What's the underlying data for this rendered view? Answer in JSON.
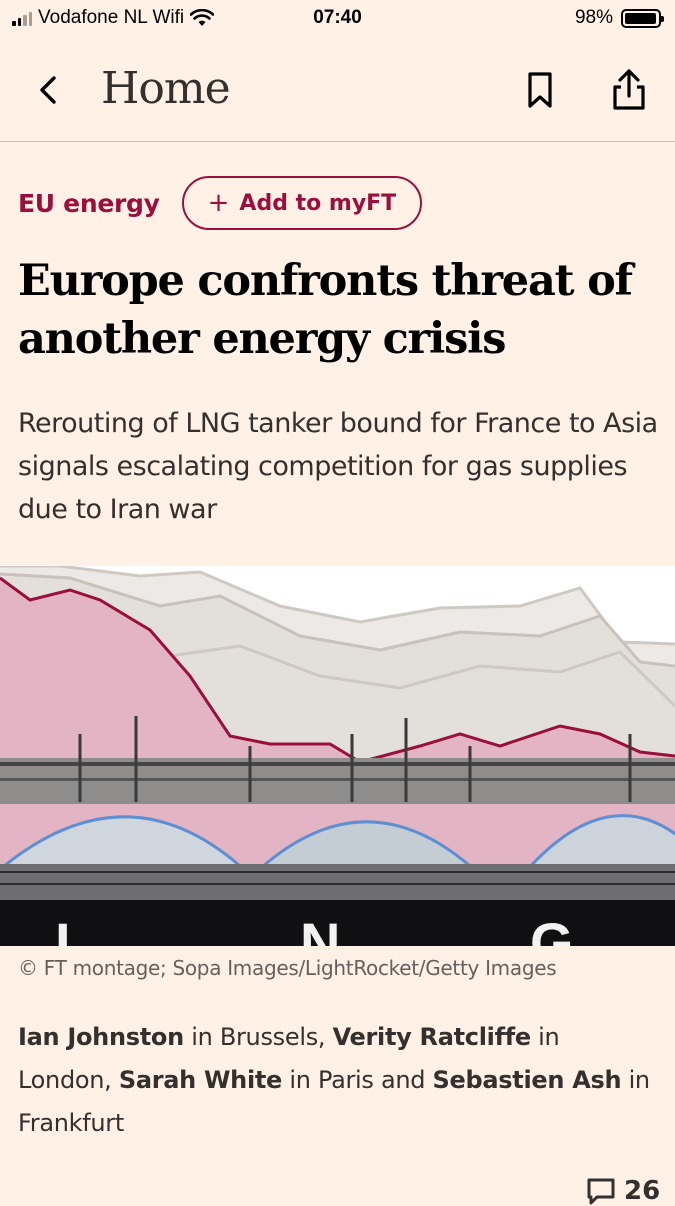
{
  "status_bar": {
    "carrier": "Vodafone NL Wifi",
    "time": "07:40",
    "battery": "98%",
    "battery_level": 0.98
  },
  "nav": {
    "title": "Home"
  },
  "topic": {
    "label": "EU energy",
    "myft_label": "Add to myFT",
    "myft_plus": "+"
  },
  "article": {
    "headline": "Europe confronts threat of another energy crisis",
    "standfirst": "Rerouting of LNG tanker bound for France to Asia signals escalating competition for gas supplies due to Iran war",
    "image_caption": "© FT montage; Sopa Images/LightRocket/Getty Images",
    "image_lettering": "LNG",
    "byline": {
      "author1": "Ian Johnston",
      "loc1": " in Brussels, ",
      "author2": "Verity Ratcliffe",
      "loc2": " in London, ",
      "author3": "Sarah White",
      "loc3": " in Paris and ",
      "author4": "Sebastien Ash",
      "loc4": " in Frankfurt"
    },
    "comments_count": "26"
  },
  "colors": {
    "background": "#fff1e5",
    "claret": "#990f3d",
    "text": "#33302e"
  },
  "icons": {
    "back": "chevron-left-icon",
    "bookmark": "bookmark-icon",
    "share": "share-icon",
    "comments": "comment-icon"
  }
}
